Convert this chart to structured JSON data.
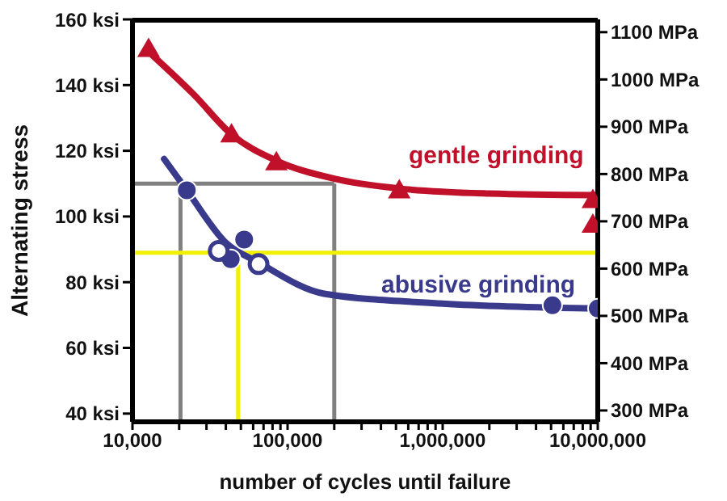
{
  "chart_data": {
    "type": "scatter",
    "xlabel": "number of cycles until failure",
    "ylabel": "Alternating stress",
    "log": "x",
    "xlim": [
      10000,
      10000000
    ],
    "xticks": [
      {
        "value": 10000,
        "label": "10,000"
      },
      {
        "value": 20000,
        "label": null
      },
      {
        "value": 30000,
        "label": null
      },
      {
        "value": 40000,
        "label": null
      },
      {
        "value": 50000,
        "label": null
      },
      {
        "value": 60000,
        "label": null
      },
      {
        "value": 70000,
        "label": null
      },
      {
        "value": 80000,
        "label": null
      },
      {
        "value": 90000,
        "label": null
      },
      {
        "value": 100000,
        "label": "100,000"
      },
      {
        "value": 200000,
        "label": null
      },
      {
        "value": 300000,
        "label": null
      },
      {
        "value": 400000,
        "label": null
      },
      {
        "value": 500000,
        "label": null
      },
      {
        "value": 600000,
        "label": null
      },
      {
        "value": 700000,
        "label": null
      },
      {
        "value": 800000,
        "label": null
      },
      {
        "value": 900000,
        "label": null
      },
      {
        "value": 1000000,
        "label": "1,000,000"
      },
      {
        "value": 2000000,
        "label": null
      },
      {
        "value": 3000000,
        "label": null
      },
      {
        "value": 4000000,
        "label": null
      },
      {
        "value": 5000000,
        "label": null
      },
      {
        "value": 6000000,
        "label": null
      },
      {
        "value": 7000000,
        "label": null
      },
      {
        "value": 8000000,
        "label": null
      },
      {
        "value": 9000000,
        "label": null
      },
      {
        "value": 10000000,
        "label": "10,000,000"
      }
    ],
    "ylim": [
      37.5,
      160
    ],
    "yticks": [
      {
        "value": 40,
        "label": "40 ksi"
      },
      {
        "value": 60,
        "label": "60 ksi"
      },
      {
        "value": 80,
        "label": "80 ksi"
      },
      {
        "value": 100,
        "label": "100 ksi"
      },
      {
        "value": 120,
        "label": "120 ksi"
      },
      {
        "value": 140,
        "label": "140 ksi"
      },
      {
        "value": 160,
        "label": "160 ksi"
      }
    ],
    "y2lim": [
      276,
      1127
    ],
    "y2ticks": [
      {
        "value": 300,
        "label": "300 MPa"
      },
      {
        "value": 400,
        "label": "400 MPa"
      },
      {
        "value": 500,
        "label": "500 MPa"
      },
      {
        "value": 600,
        "label": "600 MPa"
      },
      {
        "value": 700,
        "label": "700 MPa"
      },
      {
        "value": 800,
        "label": "800 MPa"
      },
      {
        "value": 900,
        "label": "900 MPa"
      },
      {
        "value": 1000,
        "label": "1000 MPa"
      },
      {
        "value": 1100,
        "label": "1100 MPa"
      }
    ],
    "ref_lines": [
      {
        "axis": "y",
        "value": 110,
        "color": "#808080"
      },
      {
        "axis": "x",
        "value": 20400,
        "color": "#808080"
      },
      {
        "axis": "x",
        "value": 200000,
        "color": "#808080"
      },
      {
        "axis": "y",
        "value": 89,
        "color": "#f0f000"
      },
      {
        "axis": "x",
        "value": 48000,
        "color": "#f0f000"
      }
    ],
    "series": [
      {
        "type": "line",
        "color": "#c0102a",
        "marker": "none",
        "x": [
          13500,
          25000,
          43500,
          84700,
          200000,
          525000,
          2000000,
          10000000
        ],
        "values": [
          149,
          137,
          125,
          117,
          111.5,
          108.5,
          107,
          106.5
        ]
      },
      {
        "type": "line",
        "color": "#3a3a8c",
        "marker": "none",
        "x": [
          16000,
          22400,
          40000,
          65000,
          172000,
          1000000,
          10000000
        ],
        "values": [
          117.5,
          108,
          92,
          86,
          76.5,
          73.5,
          72
        ]
      },
      {
        "name": "gentle grinding",
        "color": "#c0102a",
        "marker": "triangle",
        "x": [
          12700,
          43500,
          84700,
          525000,
          9300000,
          9300000
        ],
        "values": [
          151,
          125,
          116.5,
          108,
          105,
          97.5
        ]
      },
      {
        "name": "abusive grinding",
        "color": "#3a3a8c",
        "marker": "circle",
        "x": [
          22400,
          52500,
          43000,
          5100000,
          10000000
        ],
        "values": [
          108,
          93,
          87,
          73,
          72
        ]
      },
      {
        "color": "#3a3a8c",
        "marker": "circle",
        "x": [
          36000,
          65000
        ],
        "values": [
          89.5,
          85.5
        ]
      }
    ]
  }
}
